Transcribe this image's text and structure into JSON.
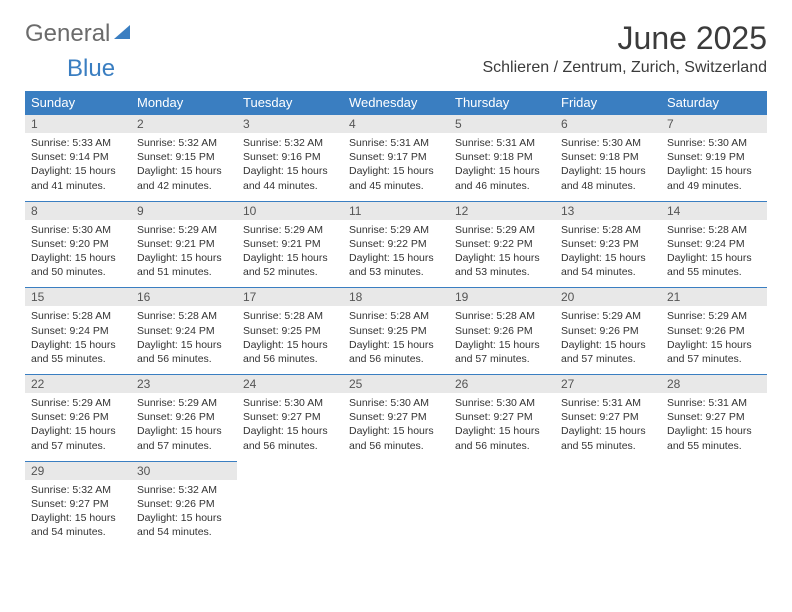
{
  "logo": {
    "text1": "General",
    "text2": "Blue"
  },
  "colors": {
    "header_bg": "#3a7ec1",
    "header_fg": "#ffffff",
    "daynum_bg": "#e8e8e8",
    "border": "#3a7ec1"
  },
  "title": "June 2025",
  "location": "Schlieren / Zentrum, Zurich, Switzerland",
  "weekdays": [
    "Sunday",
    "Monday",
    "Tuesday",
    "Wednesday",
    "Thursday",
    "Friday",
    "Saturday"
  ],
  "labels": {
    "sunrise": "Sunrise:",
    "sunset": "Sunset:",
    "daylight": "Daylight:"
  },
  "weeks": [
    [
      {
        "n": "1",
        "sr": "5:33 AM",
        "ss": "9:14 PM",
        "dl": "15 hours and 41 minutes."
      },
      {
        "n": "2",
        "sr": "5:32 AM",
        "ss": "9:15 PM",
        "dl": "15 hours and 42 minutes."
      },
      {
        "n": "3",
        "sr": "5:32 AM",
        "ss": "9:16 PM",
        "dl": "15 hours and 44 minutes."
      },
      {
        "n": "4",
        "sr": "5:31 AM",
        "ss": "9:17 PM",
        "dl": "15 hours and 45 minutes."
      },
      {
        "n": "5",
        "sr": "5:31 AM",
        "ss": "9:18 PM",
        "dl": "15 hours and 46 minutes."
      },
      {
        "n": "6",
        "sr": "5:30 AM",
        "ss": "9:18 PM",
        "dl": "15 hours and 48 minutes."
      },
      {
        "n": "7",
        "sr": "5:30 AM",
        "ss": "9:19 PM",
        "dl": "15 hours and 49 minutes."
      }
    ],
    [
      {
        "n": "8",
        "sr": "5:30 AM",
        "ss": "9:20 PM",
        "dl": "15 hours and 50 minutes."
      },
      {
        "n": "9",
        "sr": "5:29 AM",
        "ss": "9:21 PM",
        "dl": "15 hours and 51 minutes."
      },
      {
        "n": "10",
        "sr": "5:29 AM",
        "ss": "9:21 PM",
        "dl": "15 hours and 52 minutes."
      },
      {
        "n": "11",
        "sr": "5:29 AM",
        "ss": "9:22 PM",
        "dl": "15 hours and 53 minutes."
      },
      {
        "n": "12",
        "sr": "5:29 AM",
        "ss": "9:22 PM",
        "dl": "15 hours and 53 minutes."
      },
      {
        "n": "13",
        "sr": "5:28 AM",
        "ss": "9:23 PM",
        "dl": "15 hours and 54 minutes."
      },
      {
        "n": "14",
        "sr": "5:28 AM",
        "ss": "9:24 PM",
        "dl": "15 hours and 55 minutes."
      }
    ],
    [
      {
        "n": "15",
        "sr": "5:28 AM",
        "ss": "9:24 PM",
        "dl": "15 hours and 55 minutes."
      },
      {
        "n": "16",
        "sr": "5:28 AM",
        "ss": "9:24 PM",
        "dl": "15 hours and 56 minutes."
      },
      {
        "n": "17",
        "sr": "5:28 AM",
        "ss": "9:25 PM",
        "dl": "15 hours and 56 minutes."
      },
      {
        "n": "18",
        "sr": "5:28 AM",
        "ss": "9:25 PM",
        "dl": "15 hours and 56 minutes."
      },
      {
        "n": "19",
        "sr": "5:28 AM",
        "ss": "9:26 PM",
        "dl": "15 hours and 57 minutes."
      },
      {
        "n": "20",
        "sr": "5:29 AM",
        "ss": "9:26 PM",
        "dl": "15 hours and 57 minutes."
      },
      {
        "n": "21",
        "sr": "5:29 AM",
        "ss": "9:26 PM",
        "dl": "15 hours and 57 minutes."
      }
    ],
    [
      {
        "n": "22",
        "sr": "5:29 AM",
        "ss": "9:26 PM",
        "dl": "15 hours and 57 minutes."
      },
      {
        "n": "23",
        "sr": "5:29 AM",
        "ss": "9:26 PM",
        "dl": "15 hours and 57 minutes."
      },
      {
        "n": "24",
        "sr": "5:30 AM",
        "ss": "9:27 PM",
        "dl": "15 hours and 56 minutes."
      },
      {
        "n": "25",
        "sr": "5:30 AM",
        "ss": "9:27 PM",
        "dl": "15 hours and 56 minutes."
      },
      {
        "n": "26",
        "sr": "5:30 AM",
        "ss": "9:27 PM",
        "dl": "15 hours and 56 minutes."
      },
      {
        "n": "27",
        "sr": "5:31 AM",
        "ss": "9:27 PM",
        "dl": "15 hours and 55 minutes."
      },
      {
        "n": "28",
        "sr": "5:31 AM",
        "ss": "9:27 PM",
        "dl": "15 hours and 55 minutes."
      }
    ],
    [
      {
        "n": "29",
        "sr": "5:32 AM",
        "ss": "9:27 PM",
        "dl": "15 hours and 54 minutes."
      },
      {
        "n": "30",
        "sr": "5:32 AM",
        "ss": "9:26 PM",
        "dl": "15 hours and 54 minutes."
      },
      null,
      null,
      null,
      null,
      null
    ]
  ]
}
